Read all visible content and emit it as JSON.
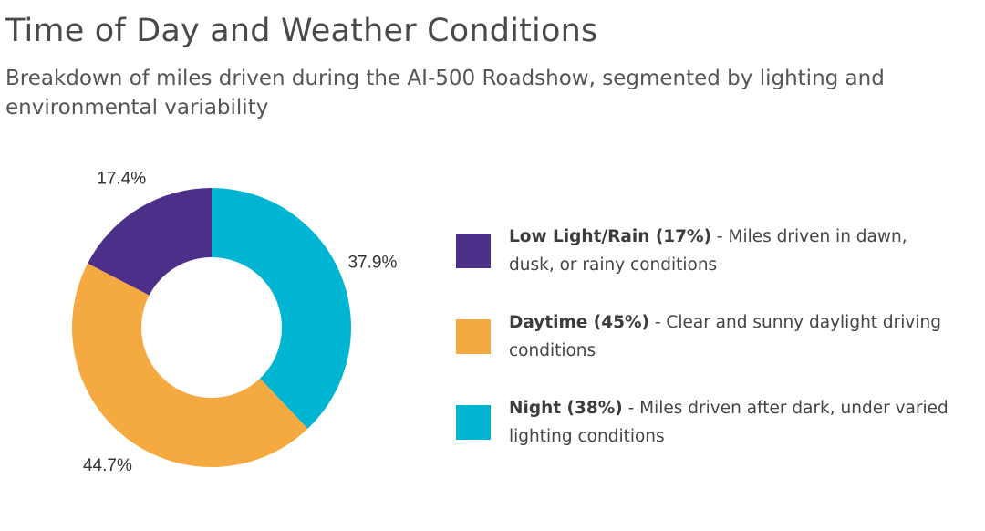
{
  "header": {
    "title": "Time of Day and Weather Conditions",
    "subtitle": "Breakdown of miles driven during the AI-500 Roadshow, segmented by lighting and environmental variability"
  },
  "chart_data": {
    "type": "pie",
    "style": "donut",
    "title": "Time of Day and Weather Conditions",
    "subtitle": "Breakdown of miles driven during the AI-500 Roadshow, segmented by lighting and environmental variability",
    "slices": [
      {
        "label": "Night",
        "value": 37.9,
        "display": "37.9%",
        "color": "#00b5d1"
      },
      {
        "label": "Daytime",
        "value": 44.7,
        "display": "44.7%",
        "color": "#f5a941"
      },
      {
        "label": "Low Light/Rain",
        "value": 17.4,
        "display": "17.4%",
        "color": "#4b2f88"
      }
    ],
    "start_angle_deg": 0,
    "direction": "clockwise",
    "legend_placement": "right"
  },
  "legend": {
    "items": [
      {
        "name": "Low Light/Rain (17%)",
        "desc": " - Miles driven in dawn, dusk, or rainy conditions",
        "color": "#4b2f88"
      },
      {
        "name": "Daytime (45%)",
        "desc": " - Clear and sunny daylight driving conditions",
        "color": "#f5a941"
      },
      {
        "name": "Night (38%)",
        "desc": " - Miles driven after dark, under varied lighting conditions",
        "color": "#00b5d1"
      }
    ]
  }
}
